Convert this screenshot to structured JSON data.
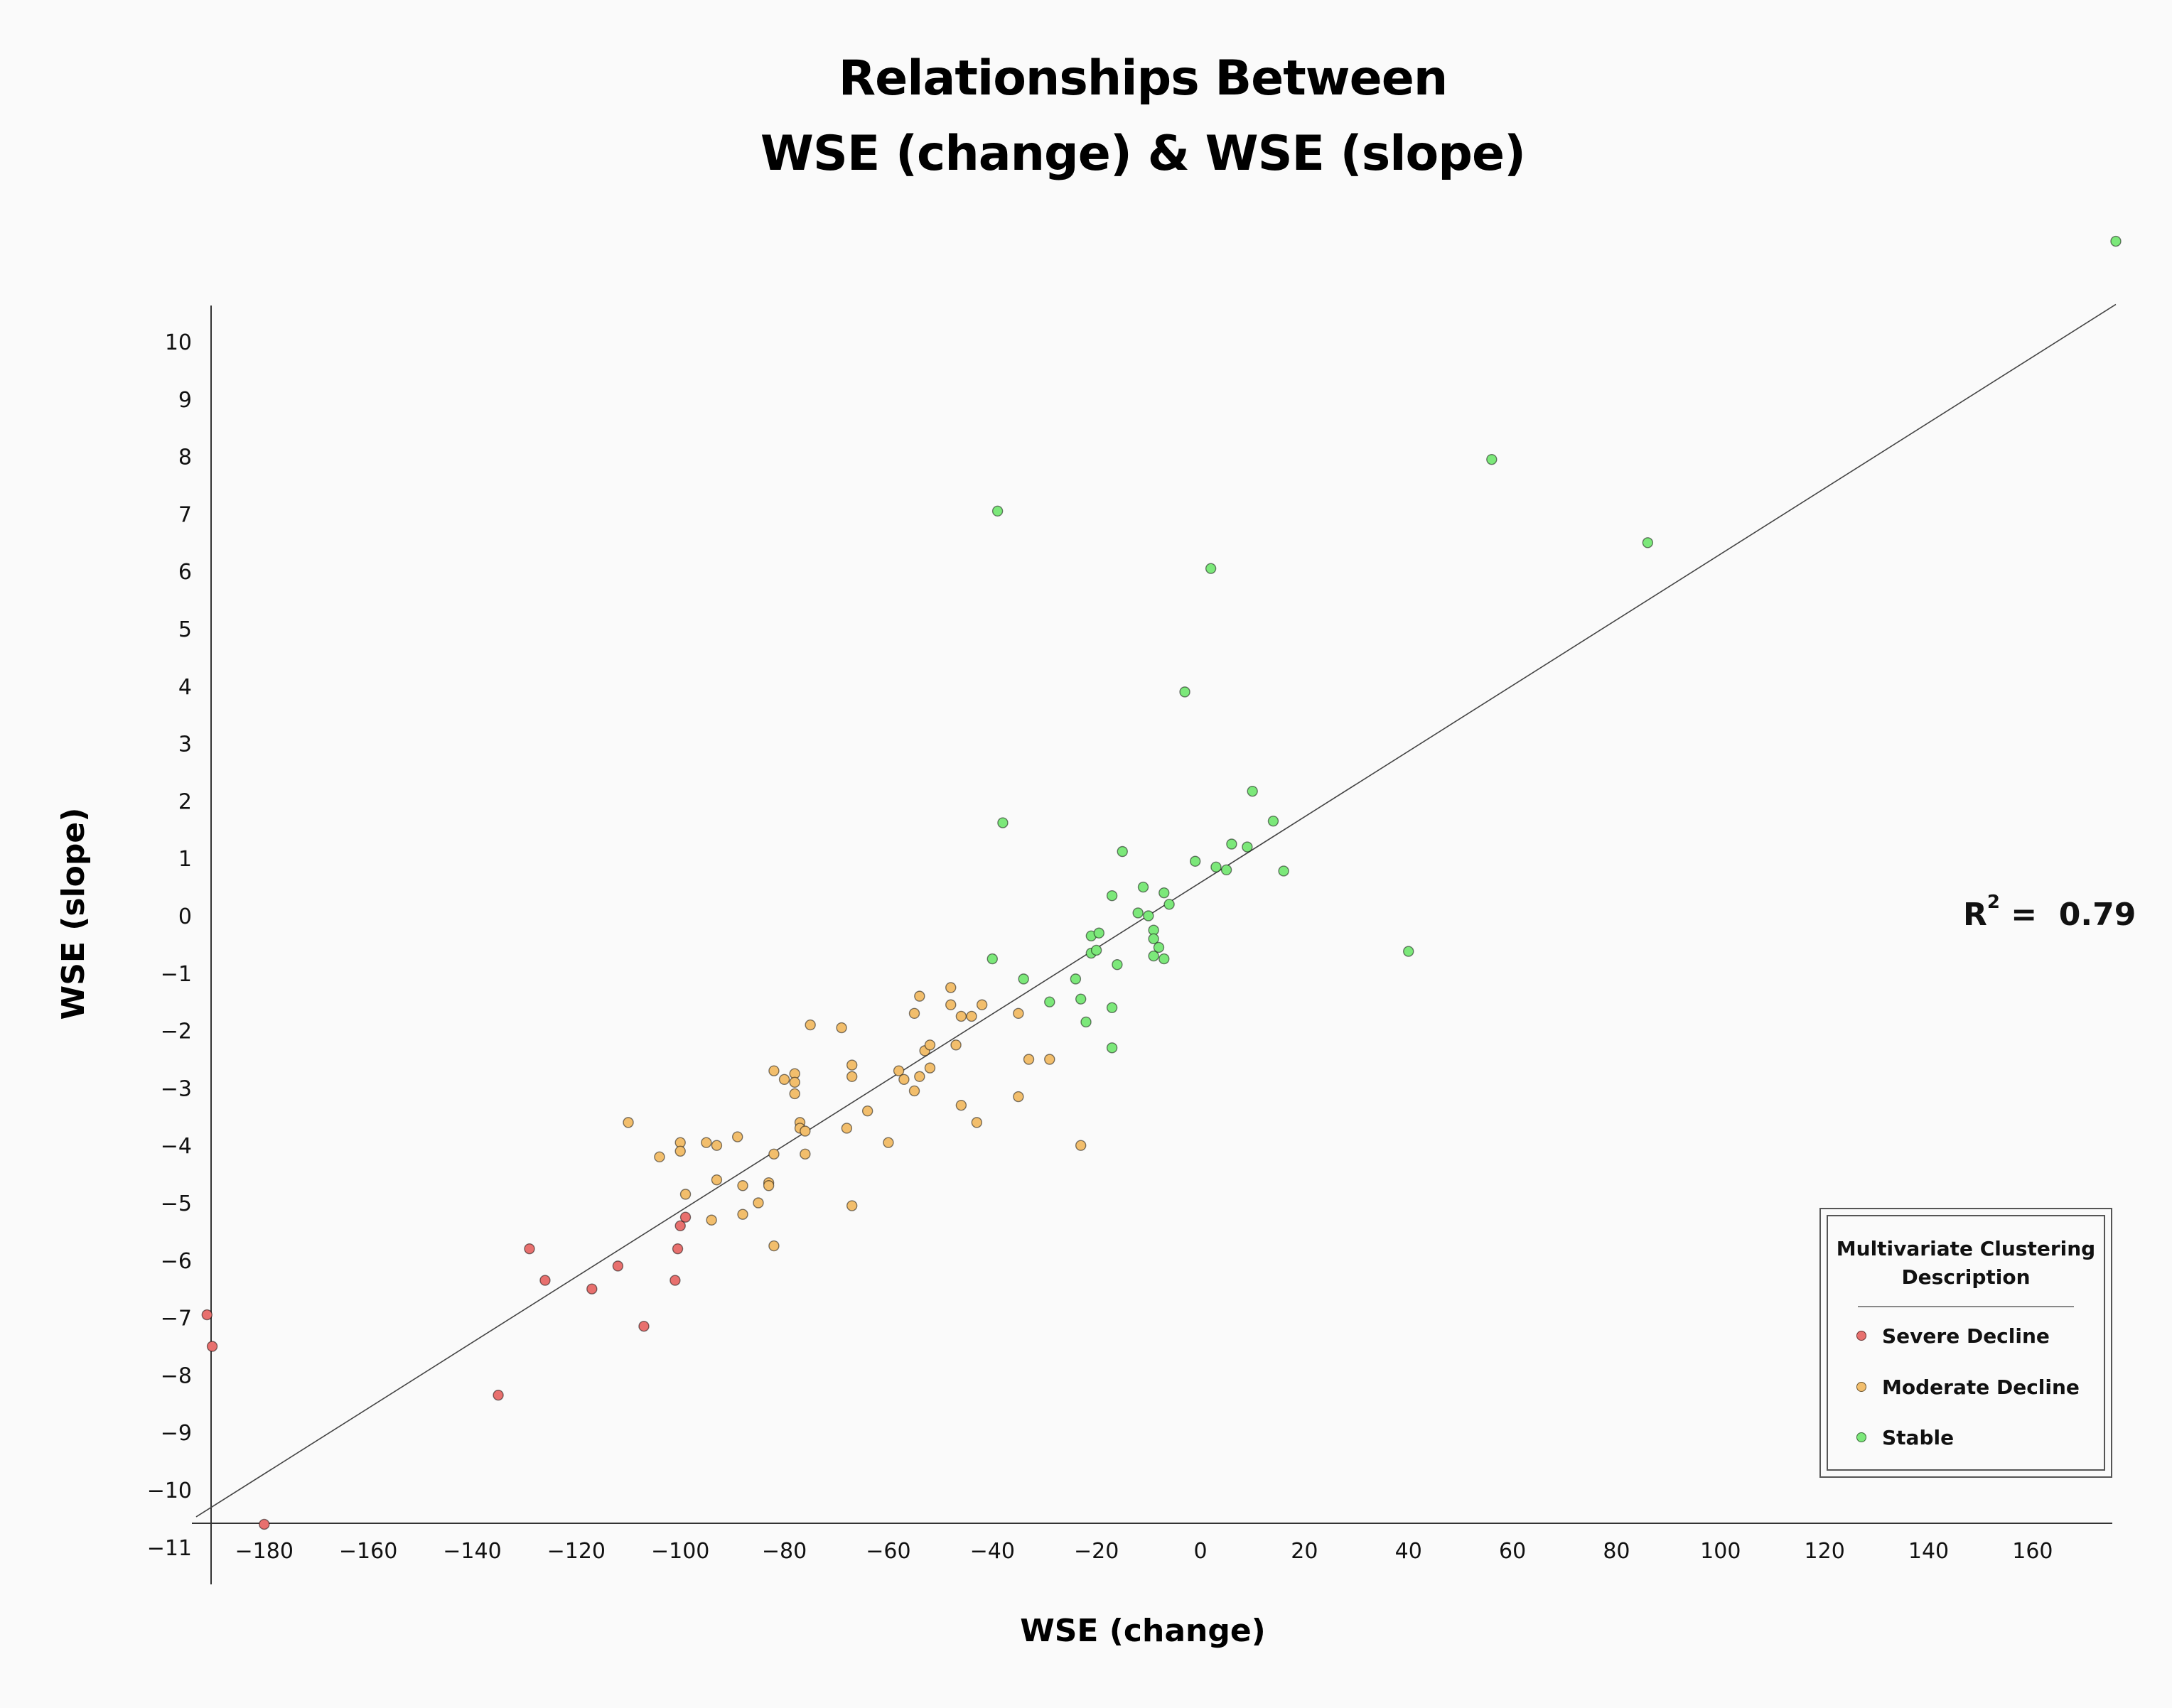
{
  "chart_data": {
    "type": "scatter",
    "title": [
      "Relationships Between",
      "WSE (change) & WSE (slope)"
    ],
    "xlabel": "WSE (change)",
    "ylabel": "WSE (slope)",
    "xlim": [
      -190,
      178
    ],
    "ylim": [
      -11,
      11.5
    ],
    "xticks": [
      -180,
      -160,
      -140,
      -120,
      -100,
      -80,
      -60,
      -40,
      -20,
      0,
      20,
      40,
      60,
      80,
      100,
      120,
      140,
      160
    ],
    "yticks": [
      -11,
      -10,
      -9,
      -8,
      -7,
      -6,
      -5,
      -4,
      -3,
      -2,
      -1,
      0,
      1,
      2,
      3,
      4,
      5,
      6,
      7,
      8,
      9,
      10
    ],
    "grid": false,
    "annotation": {
      "label": "R",
      "superscript": "2",
      "text": " =  0.79"
    },
    "trendline": {
      "x": [
        -190,
        176
      ],
      "y": [
        -10.47,
        10.65
      ]
    },
    "legend": {
      "title": "Multivariate Clustering Description",
      "position": "bottom-right"
    },
    "series": [
      {
        "name": "Severe Decline",
        "color": "#e8706e",
        "points": [
          [
            -191,
            -6.95
          ],
          [
            -190,
            -7.5
          ],
          [
            -180,
            -10.6
          ],
          [
            -135,
            -8.35
          ],
          [
            -129,
            -5.8
          ],
          [
            -126,
            -6.35
          ],
          [
            -117,
            -6.5
          ],
          [
            -112,
            -6.1
          ],
          [
            -107,
            -7.15
          ],
          [
            -101,
            -6.35
          ],
          [
            -100.5,
            -5.8
          ],
          [
            -100,
            -5.4
          ],
          [
            -99,
            -5.25
          ]
        ]
      },
      {
        "name": "Moderate Decline",
        "color": "#f2be6c",
        "points": [
          [
            -110,
            -3.6
          ],
          [
            -104,
            -4.2
          ],
          [
            -100,
            -3.95
          ],
          [
            -100,
            -4.1
          ],
          [
            -99,
            -4.85
          ],
          [
            -95,
            -3.95
          ],
          [
            -94,
            -5.3
          ],
          [
            -93,
            -4.0
          ],
          [
            -93,
            -4.6
          ],
          [
            -89,
            -3.85
          ],
          [
            -88,
            -4.7
          ],
          [
            -88,
            -5.2
          ],
          [
            -85,
            -5.0
          ],
          [
            -83,
            -4.65
          ],
          [
            -83,
            -4.7
          ],
          [
            -82,
            -4.15
          ],
          [
            -82,
            -5.75
          ],
          [
            -82,
            -2.7
          ],
          [
            -80,
            -2.85
          ],
          [
            -78,
            -2.75
          ],
          [
            -78,
            -2.9
          ],
          [
            -78,
            -3.1
          ],
          [
            -77,
            -3.6
          ],
          [
            -77,
            -3.7
          ],
          [
            -76,
            -4.15
          ],
          [
            -76,
            -3.75
          ],
          [
            -75,
            -1.9
          ],
          [
            -69,
            -1.95
          ],
          [
            -68,
            -3.7
          ],
          [
            -67,
            -5.05
          ],
          [
            -67,
            -2.6
          ],
          [
            -67,
            -2.8
          ],
          [
            -64,
            -3.4
          ],
          [
            -60,
            -3.95
          ],
          [
            -58,
            -2.7
          ],
          [
            -57,
            -2.85
          ],
          [
            -55,
            -3.05
          ],
          [
            -55,
            -1.7
          ],
          [
            -54,
            -2.8
          ],
          [
            -54,
            -1.4
          ],
          [
            -53,
            -2.35
          ],
          [
            -52,
            -2.25
          ],
          [
            -52,
            -2.65
          ],
          [
            -48,
            -1.25
          ],
          [
            -48,
            -1.55
          ],
          [
            -47,
            -2.25
          ],
          [
            -46,
            -3.3
          ],
          [
            -46,
            -1.75
          ],
          [
            -44,
            -1.75
          ],
          [
            -43,
            -3.6
          ],
          [
            -42,
            -1.55
          ],
          [
            -35,
            -3.15
          ],
          [
            -35,
            -1.7
          ],
          [
            -33,
            -2.5
          ],
          [
            -29,
            -2.5
          ],
          [
            -23,
            -4.0
          ]
        ]
      },
      {
        "name": "Stable",
        "color": "#7ce87a",
        "points": [
          [
            -40,
            -0.75
          ],
          [
            -39,
            7.05
          ],
          [
            -38,
            1.62
          ],
          [
            -34,
            -1.1
          ],
          [
            -29,
            -1.5
          ],
          [
            -24,
            -1.1
          ],
          [
            -23,
            -1.45
          ],
          [
            -22,
            -1.85
          ],
          [
            -21,
            -0.35
          ],
          [
            -21,
            -0.65
          ],
          [
            -20,
            -0.6
          ],
          [
            -19.5,
            -0.3
          ],
          [
            -17,
            -1.6
          ],
          [
            -17,
            -2.3
          ],
          [
            -17,
            0.35
          ],
          [
            -16,
            -0.85
          ],
          [
            -15,
            1.12
          ],
          [
            -12,
            0.05
          ],
          [
            -11,
            0.5
          ],
          [
            -10,
            0.0
          ],
          [
            -9,
            -0.25
          ],
          [
            -9,
            -0.4
          ],
          [
            -9,
            -0.7
          ],
          [
            -8,
            -0.55
          ],
          [
            -7,
            0.4
          ],
          [
            -7,
            -0.75
          ],
          [
            -6,
            0.2
          ],
          [
            -3,
            3.9
          ],
          [
            -1,
            0.95
          ],
          [
            2,
            6.05
          ],
          [
            3,
            0.85
          ],
          [
            5,
            0.8
          ],
          [
            6,
            1.25
          ],
          [
            9,
            1.2
          ],
          [
            10,
            2.17
          ],
          [
            14,
            1.65
          ],
          [
            16,
            0.78
          ],
          [
            40,
            -0.62
          ],
          [
            56,
            7.95
          ],
          [
            86,
            6.5
          ],
          [
            176,
            11.75
          ]
        ]
      }
    ]
  }
}
